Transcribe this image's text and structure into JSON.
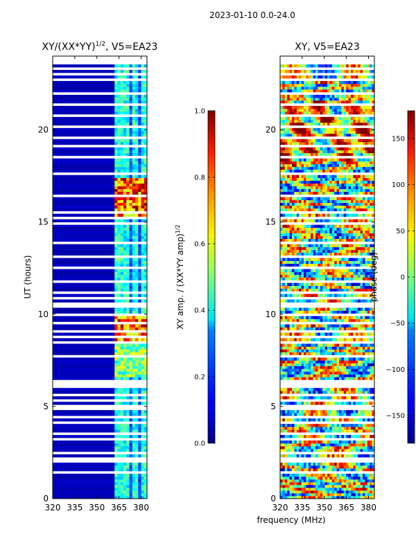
{
  "figure": {
    "suptitle": "2023-01-10 0.0-24.0",
    "xlabel_shared": "frequency (MHz)"
  },
  "chart_data": [
    {
      "type": "heatmap",
      "name": "amplitude",
      "title_main": "XY/(XX*YY)",
      "title_sup": "1/2",
      "title_rest": ", V5=EA23",
      "xlabel": "",
      "ylabel": "UT (hours)",
      "xlim": [
        320,
        384
      ],
      "ylim": [
        0,
        24
      ],
      "xticks": [
        320,
        335,
        350,
        365,
        380
      ],
      "yticks": [
        0,
        5,
        10,
        15,
        20
      ],
      "colorbar": {
        "label_main": "XY amp. / (XX*YY amp)",
        "label_sup": "1/2",
        "range": [
          0.0,
          1.0
        ],
        "ticks": [
          "0.0",
          "0.2",
          "0.4",
          "0.6",
          "0.8",
          "1.0"
        ],
        "colormap": "jet"
      },
      "notes": "Values mostly ~0.05 below 360 MHz; elevated 0.3-0.6 in 360-384 MHz band with peaks near 0.9-1.0 around 8.5-10 UT and 15-17 UT."
    },
    {
      "type": "heatmap",
      "name": "phase",
      "title_main": "XY, V5=EA23",
      "xlabel": "frequency (MHz)",
      "ylabel": "",
      "xlim": [
        320,
        384
      ],
      "ylim": [
        0,
        24
      ],
      "xticks": [
        320,
        335,
        350,
        365,
        380
      ],
      "yticks": [
        0,
        5,
        10,
        15,
        20
      ],
      "colorbar": {
        "label_main": "phase (deg)",
        "range": [
          -180,
          180
        ],
        "ticks": [
          "−150",
          "−100",
          "−50",
          "0",
          "50",
          "100",
          "150"
        ],
        "colormap": "jet"
      },
      "notes": "Phase is noisy across the full band, spanning -180 to 180 degrees."
    }
  ]
}
